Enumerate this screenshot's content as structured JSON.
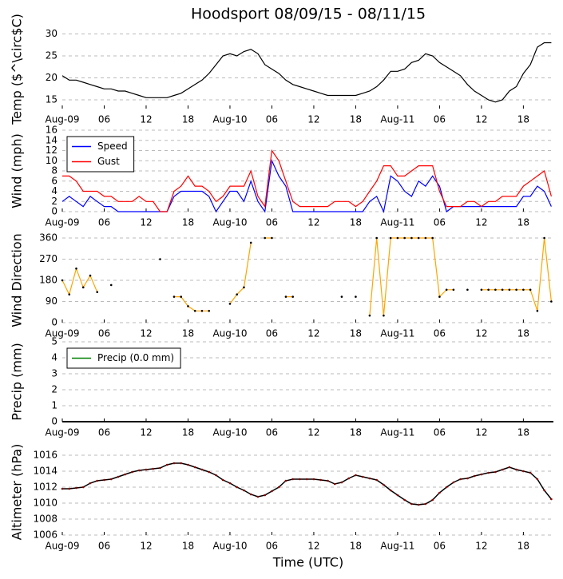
{
  "chart_data": [
    {
      "type": "line",
      "title": "Hoodsport 08/09/15 - 08/11/15",
      "ylabel": "Temp ($^\\circ$C)",
      "xlim": [
        0,
        70.3
      ],
      "xticks": [
        {
          "value": 0,
          "label": "Aug-09"
        },
        {
          "value": 6,
          "label": "06"
        },
        12,
        18,
        {
          "value": 24,
          "label": "Aug-10"
        },
        {
          "value": 30,
          "label": "06"
        },
        {
          "value": 36,
          "label": "12"
        },
        {
          "value": 42,
          "label": "18"
        },
        {
          "value": 48,
          "label": "Aug-11"
        },
        {
          "value": 54,
          "label": "06"
        },
        {
          "value": 60,
          "label": "12"
        },
        {
          "value": 66,
          "label": "18"
        }
      ],
      "ylim": [
        13,
        31
      ],
      "yticks": [
        15,
        20,
        25,
        30
      ],
      "grid": true,
      "color": "#000000",
      "x": [
        0,
        1,
        2,
        3,
        4,
        5,
        6,
        7,
        8,
        9,
        10,
        11,
        12,
        13,
        14,
        15,
        16,
        17,
        18,
        19,
        20,
        21,
        22,
        23,
        24,
        25,
        26,
        27,
        28,
        29,
        30,
        31,
        32,
        33,
        34,
        35,
        36,
        37,
        38,
        39,
        40,
        41,
        42,
        43,
        44,
        45,
        46,
        47,
        48,
        49,
        50,
        51,
        52,
        53,
        54,
        55,
        56,
        57,
        58,
        59,
        60,
        61,
        62,
        63,
        64,
        65,
        66,
        67,
        68,
        69,
        70
      ],
      "values": [
        20.5,
        19.5,
        19.5,
        19,
        18.5,
        18,
        17.5,
        17.5,
        17,
        17,
        16.5,
        16,
        15.5,
        15.5,
        15.5,
        15.5,
        16,
        16.5,
        17.5,
        18.5,
        19.5,
        21,
        23,
        25,
        25.5,
        25,
        26,
        26.5,
        25.5,
        23,
        22,
        21,
        19.5,
        18.5,
        18,
        17.5,
        17,
        16.5,
        16,
        16,
        16,
        16,
        16,
        16.5,
        17,
        18,
        19.5,
        21.5,
        21.5,
        22,
        23.5,
        24,
        25.5,
        25,
        23.5,
        22.5,
        21.5,
        20.5,
        18.5,
        17,
        16,
        15,
        14.5,
        15,
        17,
        18,
        21,
        23,
        27,
        28,
        28
      ]
    },
    {
      "type": "line",
      "ylabel": "Wind (mph)",
      "legend": "upper left",
      "xlim": [
        0,
        70.3
      ],
      "xticks": [
        {
          "value": 0,
          "label": "Aug-09"
        },
        {
          "value": 6,
          "label": "06"
        },
        12,
        18,
        {
          "value": 24,
          "label": "Aug-10"
        },
        {
          "value": 30,
          "label": "06"
        },
        {
          "value": 36,
          "label": "12"
        },
        {
          "value": 42,
          "label": "18"
        },
        {
          "value": 48,
          "label": "Aug-11"
        },
        {
          "value": 54,
          "label": "06"
        },
        {
          "value": 60,
          "label": "12"
        },
        {
          "value": 66,
          "label": "18"
        }
      ],
      "ylim": [
        0,
        16
      ],
      "yticks": [
        0,
        2,
        4,
        6,
        8,
        10,
        12,
        14,
        16
      ],
      "grid": true,
      "x": [
        0,
        1,
        2,
        3,
        4,
        5,
        6,
        7,
        8,
        9,
        10,
        11,
        12,
        13,
        14,
        15,
        16,
        17,
        18,
        19,
        20,
        21,
        22,
        23,
        24,
        25,
        26,
        27,
        28,
        29,
        30,
        31,
        32,
        33,
        34,
        35,
        36,
        37,
        38,
        39,
        40,
        41,
        42,
        43,
        44,
        45,
        46,
        47,
        48,
        49,
        50,
        51,
        52,
        53,
        54,
        55,
        56,
        57,
        58,
        59,
        60,
        61,
        62,
        63,
        64,
        65,
        66,
        67,
        68,
        69,
        70
      ],
      "series": [
        {
          "name": "Speed",
          "color": "#0000ff",
          "values": [
            2,
            3,
            2,
            1,
            3,
            2,
            1,
            1,
            0,
            0,
            0,
            0,
            0,
            0,
            0,
            0,
            3,
            4,
            4,
            4,
            4,
            3,
            0,
            2,
            4,
            4,
            2,
            6,
            2,
            0,
            10,
            7,
            5,
            0,
            0,
            0,
            0,
            0,
            0,
            0,
            0,
            0,
            0,
            0,
            2,
            3,
            0,
            7,
            6,
            4,
            3,
            6,
            5,
            7,
            5,
            0,
            1,
            1,
            1,
            1,
            1,
            1,
            1,
            1,
            1,
            1,
            3,
            3,
            5,
            4,
            1
          ]
        },
        {
          "name": "Gust",
          "color": "#ff0000",
          "values": [
            7,
            7,
            6,
            4,
            4,
            4,
            3,
            3,
            2,
            2,
            2,
            3,
            2,
            2,
            0,
            0,
            4,
            5,
            7,
            5,
            5,
            4,
            2,
            3,
            5,
            5,
            5,
            8,
            3,
            1,
            12,
            10,
            6,
            2,
            1,
            1,
            1,
            1,
            1,
            2,
            2,
            2,
            1,
            2,
            4,
            6,
            9,
            9,
            7,
            7,
            8,
            9,
            9,
            9,
            4,
            1,
            1,
            1,
            2,
            2,
            1,
            2,
            2,
            3,
            3,
            3,
            5,
            6,
            7,
            8,
            3
          ]
        }
      ]
    },
    {
      "type": "line",
      "ylabel": "Wind Direction",
      "xlim": [
        0,
        70.3
      ],
      "xticks": [
        {
          "value": 0,
          "label": "Aug-09"
        },
        {
          "value": 6,
          "label": "06"
        },
        12,
        18,
        {
          "value": 24,
          "label": "Aug-10"
        },
        {
          "value": 30,
          "label": "06"
        },
        {
          "value": 36,
          "label": "12"
        },
        {
          "value": 42,
          "label": "18"
        },
        {
          "value": 48,
          "label": "Aug-11"
        },
        {
          "value": 54,
          "label": "06"
        },
        {
          "value": 60,
          "label": "12"
        },
        {
          "value": 66,
          "label": "18"
        }
      ],
      "ylim": [
        0,
        360
      ],
      "yticks": [
        0,
        90,
        180,
        270,
        360
      ],
      "grid": true,
      "color": "#ffa500",
      "marker_color": "#000000",
      "x": [
        0,
        1,
        2,
        3,
        4,
        5,
        6,
        7,
        8,
        9,
        10,
        11,
        12,
        13,
        14,
        15,
        16,
        17,
        18,
        19,
        20,
        21,
        22,
        23,
        24,
        25,
        26,
        27,
        28,
        29,
        30,
        31,
        32,
        33,
        34,
        35,
        36,
        37,
        38,
        39,
        40,
        41,
        42,
        43,
        44,
        45,
        46,
        47,
        48,
        49,
        50,
        51,
        52,
        53,
        54,
        55,
        56,
        57,
        58,
        59,
        60,
        61,
        62,
        63,
        64,
        65,
        66,
        67,
        68,
        69,
        70
      ],
      "values": [
        180,
        120,
        230,
        150,
        200,
        130,
        null,
        160,
        null,
        null,
        null,
        null,
        null,
        null,
        270,
        null,
        110,
        110,
        70,
        50,
        50,
        50,
        null,
        null,
        80,
        120,
        150,
        340,
        null,
        360,
        360,
        null,
        110,
        110,
        null,
        null,
        null,
        null,
        null,
        null,
        110,
        null,
        110,
        null,
        30,
        360,
        30,
        360,
        360,
        360,
        360,
        360,
        360,
        360,
        110,
        140,
        140,
        null,
        140,
        null,
        140,
        140,
        140,
        140,
        140,
        140,
        140,
        140,
        50,
        360,
        90
      ]
    },
    {
      "type": "line",
      "ylabel": "Precip (mm)",
      "legend": "upper left",
      "xlim": [
        0,
        70.3
      ],
      "xticks": [
        {
          "value": 0,
          "label": "Aug-09"
        },
        {
          "value": 6,
          "label": "06"
        },
        12,
        18,
        {
          "value": 24,
          "label": "Aug-10"
        },
        {
          "value": 30,
          "label": "06"
        },
        {
          "value": 36,
          "label": "12"
        },
        {
          "value": 42,
          "label": "18"
        },
        {
          "value": 48,
          "label": "Aug-11"
        },
        {
          "value": 54,
          "label": "06"
        },
        {
          "value": 60,
          "label": "12"
        },
        {
          "value": 66,
          "label": "18"
        }
      ],
      "ylim": [
        0,
        5
      ],
      "yticks": [
        0,
        1,
        2,
        3,
        4,
        5
      ],
      "grid": true,
      "x": [
        0,
        70.3
      ],
      "series": [
        {
          "name": "Precip (0.0 mm)",
          "color": "#000000",
          "legend_color": "#008000",
          "values": [
            0,
            0
          ]
        }
      ]
    },
    {
      "type": "line",
      "ylabel": "Altimeter (hPa)",
      "xlabel": "Time (UTC)",
      "xlim": [
        0,
        70.3
      ],
      "xticks": [
        {
          "value": 0,
          "label": "Aug-09"
        },
        {
          "value": 6,
          "label": "06"
        },
        12,
        18,
        {
          "value": 24,
          "label": "Aug-10"
        },
        {
          "value": 30,
          "label": "06"
        },
        {
          "value": 36,
          "label": "12"
        },
        {
          "value": 42,
          "label": "18"
        },
        {
          "value": 48,
          "label": "Aug-11"
        },
        {
          "value": 54,
          "label": "06"
        },
        {
          "value": 60,
          "label": "12"
        },
        {
          "value": 66,
          "label": "18"
        }
      ],
      "ylim": [
        1006,
        1016.8
      ],
      "yticks": [
        1006,
        1008,
        1010,
        1012,
        1014,
        1016
      ],
      "grid": true,
      "color": "#000000",
      "marker_color": "#8b0000",
      "x": [
        0,
        1,
        2,
        3,
        4,
        5,
        6,
        7,
        8,
        9,
        10,
        11,
        12,
        13,
        14,
        15,
        16,
        17,
        18,
        19,
        20,
        21,
        22,
        23,
        24,
        25,
        26,
        27,
        28,
        29,
        30,
        31,
        32,
        33,
        34,
        35,
        36,
        37,
        38,
        39,
        40,
        41,
        42,
        43,
        44,
        45,
        46,
        47,
        48,
        49,
        50,
        51,
        52,
        53,
        54,
        55,
        56,
        57,
        58,
        59,
        60,
        61,
        62,
        63,
        64,
        65,
        66,
        67,
        68,
        69,
        70
      ],
      "values": [
        1011.8,
        1011.8,
        1011.9,
        1012,
        1012.5,
        1012.8,
        1012.9,
        1013,
        1013.3,
        1013.6,
        1013.9,
        1014.1,
        1014.2,
        1014.3,
        1014.4,
        1014.8,
        1015,
        1015,
        1014.8,
        1014.5,
        1014.2,
        1013.9,
        1013.5,
        1012.9,
        1012.5,
        1012,
        1011.6,
        1011.1,
        1010.8,
        1011,
        1011.5,
        1012,
        1012.8,
        1013,
        1013,
        1013,
        1013,
        1012.9,
        1012.8,
        1012.4,
        1012.6,
        1013.1,
        1013.5,
        1013.3,
        1013.1,
        1012.9,
        1012.3,
        1011.6,
        1011,
        1010.4,
        1009.9,
        1009.8,
        1009.9,
        1010.4,
        1011.3,
        1012,
        1012.6,
        1013,
        1013.1,
        1013.4,
        1013.6,
        1013.8,
        1013.9,
        1014.2,
        1014.5,
        1014.2,
        1014,
        1013.8,
        1013,
        1011.6,
        1010.5
      ]
    }
  ]
}
